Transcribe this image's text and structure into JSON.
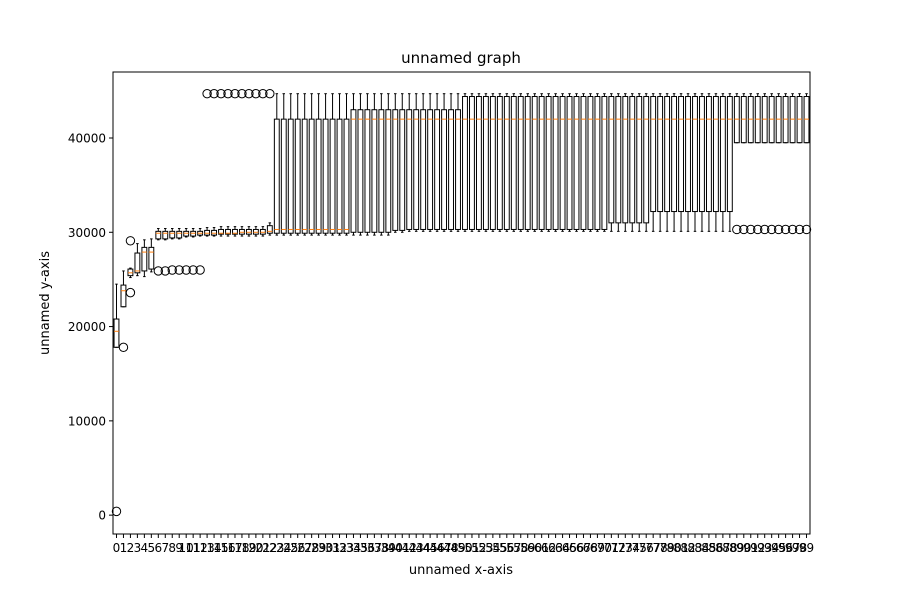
{
  "chart_data": {
    "type": "box",
    "title": "unnamed graph",
    "xlabel": "unnamed x-axis",
    "ylabel": "unnamed y-axis",
    "ylim": [
      -2000,
      47000
    ],
    "yticks": [
      0,
      10000,
      20000,
      30000,
      40000
    ],
    "grid": false,
    "colors": {
      "box": "#000000",
      "median": "#ff7f0e",
      "background": "#ffffff"
    },
    "boxes": [
      {
        "x": 0,
        "q1": 17800,
        "med": 19500,
        "q3": 20800,
        "wlo": 17800,
        "whi": 24500,
        "fliers": [
          400
        ]
      },
      {
        "x": 1,
        "q1": 22100,
        "med": 23800,
        "q3": 24400,
        "wlo": 22100,
        "whi": 25900,
        "fliers": [
          17800
        ]
      },
      {
        "x": 2,
        "q1": 25400,
        "med": 25700,
        "q3": 26100,
        "wlo": 25200,
        "whi": 26200,
        "fliers": [
          23600,
          29100
        ]
      },
      {
        "x": 3,
        "q1": 25700,
        "med": 25900,
        "q3": 27800,
        "wlo": 25400,
        "whi": 28800,
        "fliers": []
      },
      {
        "x": 4,
        "q1": 25900,
        "med": 27900,
        "q3": 28400,
        "wlo": 25300,
        "whi": 29200,
        "fliers": []
      },
      {
        "x": 5,
        "q1": 26100,
        "med": 27900,
        "q3": 28400,
        "wlo": 25800,
        "whi": 29300,
        "fliers": []
      },
      {
        "x": 6,
        "q1": 29300,
        "med": 29900,
        "q3": 30100,
        "wlo": 29200,
        "whi": 30400,
        "fliers": [
          25900
        ]
      },
      {
        "x": 7,
        "q1": 29300,
        "med": 29900,
        "q3": 30100,
        "wlo": 29200,
        "whi": 30400,
        "fliers": [
          25900
        ]
      },
      {
        "x": 8,
        "q1": 29400,
        "med": 29900,
        "q3": 30100,
        "wlo": 29300,
        "whi": 30400,
        "fliers": [
          26000
        ]
      },
      {
        "x": 9,
        "q1": 29400,
        "med": 29900,
        "q3": 30100,
        "wlo": 29300,
        "whi": 30400,
        "fliers": [
          26000
        ]
      },
      {
        "x": 10,
        "q1": 29600,
        "med": 29900,
        "q3": 30100,
        "wlo": 29500,
        "whi": 30400,
        "fliers": [
          26000
        ]
      },
      {
        "x": 11,
        "q1": 29600,
        "med": 29900,
        "q3": 30100,
        "wlo": 29500,
        "whi": 30400,
        "fliers": [
          26000
        ]
      },
      {
        "x": 12,
        "q1": 29700,
        "med": 29900,
        "q3": 30100,
        "wlo": 29600,
        "whi": 30400,
        "fliers": [
          26000
        ]
      },
      {
        "x": 13,
        "q1": 29700,
        "med": 29900,
        "q3": 30200,
        "wlo": 29600,
        "whi": 30500,
        "fliers": [
          44700
        ]
      },
      {
        "x": 14,
        "q1": 29700,
        "med": 29900,
        "q3": 30200,
        "wlo": 29600,
        "whi": 30500,
        "fliers": [
          44700
        ]
      },
      {
        "x": 15,
        "q1": 29800,
        "med": 29900,
        "q3": 30300,
        "wlo": 29600,
        "whi": 30600,
        "fliers": [
          44700
        ]
      },
      {
        "x": 16,
        "q1": 29800,
        "med": 29900,
        "q3": 30300,
        "wlo": 29600,
        "whi": 30600,
        "fliers": [
          44700
        ]
      },
      {
        "x": 17,
        "q1": 29800,
        "med": 29900,
        "q3": 30300,
        "wlo": 29600,
        "whi": 30600,
        "fliers": [
          44700
        ]
      },
      {
        "x": 18,
        "q1": 29800,
        "med": 30000,
        "q3": 30300,
        "wlo": 29600,
        "whi": 30600,
        "fliers": [
          44700
        ]
      },
      {
        "x": 19,
        "q1": 29800,
        "med": 30000,
        "q3": 30300,
        "wlo": 29600,
        "whi": 30600,
        "fliers": [
          44700
        ]
      },
      {
        "x": 20,
        "q1": 29800,
        "med": 30000,
        "q3": 30300,
        "wlo": 29600,
        "whi": 30600,
        "fliers": [
          44700
        ]
      },
      {
        "x": 21,
        "q1": 29800,
        "med": 30000,
        "q3": 30300,
        "wlo": 29600,
        "whi": 30600,
        "fliers": [
          44700
        ]
      },
      {
        "x": 22,
        "q1": 29900,
        "med": 30100,
        "q3": 30700,
        "wlo": 29700,
        "whi": 31000,
        "fliers": [
          44700
        ]
      },
      {
        "x": 23,
        "q1": 29900,
        "med": 30300,
        "q3": 42000,
        "wlo": 29700,
        "whi": 44700,
        "fliers": []
      },
      {
        "x": 24,
        "q1": 29900,
        "med": 30300,
        "q3": 42000,
        "wlo": 29700,
        "whi": 44700,
        "fliers": []
      },
      {
        "x": 25,
        "q1": 29900,
        "med": 30300,
        "q3": 42000,
        "wlo": 29700,
        "whi": 44700,
        "fliers": []
      },
      {
        "x": 26,
        "q1": 29900,
        "med": 30300,
        "q3": 42000,
        "wlo": 29700,
        "whi": 44700,
        "fliers": []
      },
      {
        "x": 27,
        "q1": 29900,
        "med": 30300,
        "q3": 42000,
        "wlo": 29700,
        "whi": 44700,
        "fliers": []
      },
      {
        "x": 28,
        "q1": 29900,
        "med": 30300,
        "q3": 42000,
        "wlo": 29700,
        "whi": 44700,
        "fliers": []
      },
      {
        "x": 29,
        "q1": 29900,
        "med": 30300,
        "q3": 42000,
        "wlo": 29700,
        "whi": 44700,
        "fliers": []
      },
      {
        "x": 30,
        "q1": 29900,
        "med": 30300,
        "q3": 42000,
        "wlo": 29700,
        "whi": 44700,
        "fliers": []
      },
      {
        "x": 31,
        "q1": 29900,
        "med": 30300,
        "q3": 42000,
        "wlo": 29700,
        "whi": 44700,
        "fliers": []
      },
      {
        "x": 32,
        "q1": 29900,
        "med": 30300,
        "q3": 42000,
        "wlo": 29700,
        "whi": 44700,
        "fliers": []
      },
      {
        "x": 33,
        "q1": 29900,
        "med": 30300,
        "q3": 42000,
        "wlo": 29700,
        "whi": 44700,
        "fliers": []
      },
      {
        "x": 34,
        "q1": 30000,
        "med": 42000,
        "q3": 43000,
        "wlo": 29700,
        "whi": 44700,
        "fliers": []
      },
      {
        "x": 35,
        "q1": 30000,
        "med": 42000,
        "q3": 43000,
        "wlo": 29700,
        "whi": 44700,
        "fliers": []
      },
      {
        "x": 36,
        "q1": 30000,
        "med": 42000,
        "q3": 43000,
        "wlo": 29700,
        "whi": 44700,
        "fliers": []
      },
      {
        "x": 37,
        "q1": 30000,
        "med": 42000,
        "q3": 43000,
        "wlo": 29700,
        "whi": 44700,
        "fliers": []
      },
      {
        "x": 38,
        "q1": 30000,
        "med": 42000,
        "q3": 43000,
        "wlo": 29700,
        "whi": 44700,
        "fliers": []
      },
      {
        "x": 39,
        "q1": 30000,
        "med": 42000,
        "q3": 43000,
        "wlo": 29700,
        "whi": 44700,
        "fliers": []
      },
      {
        "x": 40,
        "q1": 30200,
        "med": 42000,
        "q3": 43000,
        "wlo": 30000,
        "whi": 44700,
        "fliers": []
      },
      {
        "x": 41,
        "q1": 30200,
        "med": 42000,
        "q3": 43000,
        "wlo": 30000,
        "whi": 44700,
        "fliers": []
      },
      {
        "x": 42,
        "q1": 30300,
        "med": 42000,
        "q3": 43000,
        "wlo": 30100,
        "whi": 44700,
        "fliers": []
      },
      {
        "x": 43,
        "q1": 30300,
        "med": 42000,
        "q3": 43000,
        "wlo": 30100,
        "whi": 44700,
        "fliers": []
      },
      {
        "x": 44,
        "q1": 30300,
        "med": 42000,
        "q3": 43000,
        "wlo": 30100,
        "whi": 44700,
        "fliers": []
      },
      {
        "x": 45,
        "q1": 30300,
        "med": 42000,
        "q3": 43000,
        "wlo": 30100,
        "whi": 44700,
        "fliers": []
      },
      {
        "x": 46,
        "q1": 30300,
        "med": 42000,
        "q3": 43000,
        "wlo": 30100,
        "whi": 44700,
        "fliers": []
      },
      {
        "x": 47,
        "q1": 30300,
        "med": 42000,
        "q3": 43000,
        "wlo": 30100,
        "whi": 44700,
        "fliers": []
      },
      {
        "x": 48,
        "q1": 30300,
        "med": 42000,
        "q3": 43000,
        "wlo": 30100,
        "whi": 44700,
        "fliers": []
      },
      {
        "x": 49,
        "q1": 30300,
        "med": 42000,
        "q3": 43000,
        "wlo": 30100,
        "whi": 44700,
        "fliers": []
      },
      {
        "x": 50,
        "q1": 30300,
        "med": 42000,
        "q3": 44400,
        "wlo": 30100,
        "whi": 44700,
        "fliers": []
      },
      {
        "x": 51,
        "q1": 30300,
        "med": 42000,
        "q3": 44400,
        "wlo": 30100,
        "whi": 44700,
        "fliers": []
      },
      {
        "x": 52,
        "q1": 30300,
        "med": 42000,
        "q3": 44400,
        "wlo": 30100,
        "whi": 44700,
        "fliers": []
      },
      {
        "x": 53,
        "q1": 30300,
        "med": 42000,
        "q3": 44400,
        "wlo": 30100,
        "whi": 44700,
        "fliers": []
      },
      {
        "x": 54,
        "q1": 30300,
        "med": 42000,
        "q3": 44400,
        "wlo": 30100,
        "whi": 44700,
        "fliers": []
      },
      {
        "x": 55,
        "q1": 30300,
        "med": 42000,
        "q3": 44400,
        "wlo": 30100,
        "whi": 44700,
        "fliers": []
      },
      {
        "x": 56,
        "q1": 30300,
        "med": 42000,
        "q3": 44400,
        "wlo": 30100,
        "whi": 44700,
        "fliers": []
      },
      {
        "x": 57,
        "q1": 30300,
        "med": 42000,
        "q3": 44400,
        "wlo": 30100,
        "whi": 44700,
        "fliers": []
      },
      {
        "x": 58,
        "q1": 30300,
        "med": 42000,
        "q3": 44400,
        "wlo": 30100,
        "whi": 44700,
        "fliers": []
      },
      {
        "x": 59,
        "q1": 30300,
        "med": 42000,
        "q3": 44400,
        "wlo": 30100,
        "whi": 44700,
        "fliers": []
      },
      {
        "x": 60,
        "q1": 30300,
        "med": 42000,
        "q3": 44400,
        "wlo": 30100,
        "whi": 44700,
        "fliers": []
      },
      {
        "x": 61,
        "q1": 30300,
        "med": 42000,
        "q3": 44400,
        "wlo": 30100,
        "whi": 44700,
        "fliers": []
      },
      {
        "x": 62,
        "q1": 30300,
        "med": 42000,
        "q3": 44400,
        "wlo": 30100,
        "whi": 44700,
        "fliers": []
      },
      {
        "x": 63,
        "q1": 30300,
        "med": 42000,
        "q3": 44400,
        "wlo": 30100,
        "whi": 44700,
        "fliers": []
      },
      {
        "x": 64,
        "q1": 30300,
        "med": 42000,
        "q3": 44400,
        "wlo": 30100,
        "whi": 44700,
        "fliers": []
      },
      {
        "x": 65,
        "q1": 30300,
        "med": 42000,
        "q3": 44400,
        "wlo": 30100,
        "whi": 44700,
        "fliers": []
      },
      {
        "x": 66,
        "q1": 30300,
        "med": 42000,
        "q3": 44400,
        "wlo": 30100,
        "whi": 44700,
        "fliers": []
      },
      {
        "x": 67,
        "q1": 30300,
        "med": 42000,
        "q3": 44400,
        "wlo": 30100,
        "whi": 44700,
        "fliers": []
      },
      {
        "x": 68,
        "q1": 30300,
        "med": 42000,
        "q3": 44400,
        "wlo": 30100,
        "whi": 44700,
        "fliers": []
      },
      {
        "x": 69,
        "q1": 30300,
        "med": 42000,
        "q3": 44400,
        "wlo": 30100,
        "whi": 44700,
        "fliers": []
      },
      {
        "x": 70,
        "q1": 30300,
        "med": 42000,
        "q3": 44400,
        "wlo": 30100,
        "whi": 44700,
        "fliers": []
      },
      {
        "x": 71,
        "q1": 31000,
        "med": 42000,
        "q3": 44400,
        "wlo": 30100,
        "whi": 44700,
        "fliers": []
      },
      {
        "x": 72,
        "q1": 31000,
        "med": 42000,
        "q3": 44400,
        "wlo": 30100,
        "whi": 44700,
        "fliers": []
      },
      {
        "x": 73,
        "q1": 31000,
        "med": 42000,
        "q3": 44400,
        "wlo": 30100,
        "whi": 44700,
        "fliers": []
      },
      {
        "x": 74,
        "q1": 31000,
        "med": 42000,
        "q3": 44400,
        "wlo": 30100,
        "whi": 44700,
        "fliers": []
      },
      {
        "x": 75,
        "q1": 31000,
        "med": 42000,
        "q3": 44400,
        "wlo": 30100,
        "whi": 44700,
        "fliers": []
      },
      {
        "x": 76,
        "q1": 31000,
        "med": 42000,
        "q3": 44400,
        "wlo": 30100,
        "whi": 44700,
        "fliers": []
      },
      {
        "x": 77,
        "q1": 32200,
        "med": 42000,
        "q3": 44400,
        "wlo": 30100,
        "whi": 44700,
        "fliers": []
      },
      {
        "x": 78,
        "q1": 32200,
        "med": 42000,
        "q3": 44400,
        "wlo": 30100,
        "whi": 44700,
        "fliers": []
      },
      {
        "x": 79,
        "q1": 32200,
        "med": 42000,
        "q3": 44400,
        "wlo": 30100,
        "whi": 44700,
        "fliers": []
      },
      {
        "x": 80,
        "q1": 32200,
        "med": 42000,
        "q3": 44400,
        "wlo": 30100,
        "whi": 44700,
        "fliers": []
      },
      {
        "x": 81,
        "q1": 32200,
        "med": 42000,
        "q3": 44400,
        "wlo": 30100,
        "whi": 44700,
        "fliers": []
      },
      {
        "x": 82,
        "q1": 32200,
        "med": 42000,
        "q3": 44400,
        "wlo": 30100,
        "whi": 44700,
        "fliers": []
      },
      {
        "x": 83,
        "q1": 32200,
        "med": 42000,
        "q3": 44400,
        "wlo": 30100,
        "whi": 44700,
        "fliers": []
      },
      {
        "x": 84,
        "q1": 32200,
        "med": 42000,
        "q3": 44400,
        "wlo": 30100,
        "whi": 44700,
        "fliers": []
      },
      {
        "x": 85,
        "q1": 32200,
        "med": 42000,
        "q3": 44400,
        "wlo": 30100,
        "whi": 44700,
        "fliers": []
      },
      {
        "x": 86,
        "q1": 32200,
        "med": 42000,
        "q3": 44400,
        "wlo": 30100,
        "whi": 44700,
        "fliers": []
      },
      {
        "x": 87,
        "q1": 32200,
        "med": 42000,
        "q3": 44400,
        "wlo": 30100,
        "whi": 44700,
        "fliers": []
      },
      {
        "x": 88,
        "q1": 32200,
        "med": 42000,
        "q3": 44400,
        "wlo": 30100,
        "whi": 44700,
        "fliers": []
      },
      {
        "x": 89,
        "q1": 39500,
        "med": 42000,
        "q3": 44400,
        "wlo": 39500,
        "whi": 44700,
        "fliers": [
          30300
        ]
      },
      {
        "x": 90,
        "q1": 39500,
        "med": 42000,
        "q3": 44400,
        "wlo": 39500,
        "whi": 44700,
        "fliers": [
          30300
        ]
      },
      {
        "x": 91,
        "q1": 39500,
        "med": 42000,
        "q3": 44400,
        "wlo": 39500,
        "whi": 44700,
        "fliers": [
          30300
        ]
      },
      {
        "x": 92,
        "q1": 39500,
        "med": 42000,
        "q3": 44400,
        "wlo": 39500,
        "whi": 44700,
        "fliers": [
          30300
        ]
      },
      {
        "x": 93,
        "q1": 39500,
        "med": 42000,
        "q3": 44400,
        "wlo": 39500,
        "whi": 44700,
        "fliers": [
          30300
        ]
      },
      {
        "x": 94,
        "q1": 39500,
        "med": 42000,
        "q3": 44400,
        "wlo": 39500,
        "whi": 44700,
        "fliers": [
          30300
        ]
      },
      {
        "x": 95,
        "q1": 39500,
        "med": 42000,
        "q3": 44400,
        "wlo": 39500,
        "whi": 44700,
        "fliers": [
          30300
        ]
      },
      {
        "x": 96,
        "q1": 39500,
        "med": 42000,
        "q3": 44400,
        "wlo": 39500,
        "whi": 44700,
        "fliers": [
          30300
        ]
      },
      {
        "x": 97,
        "q1": 39500,
        "med": 42000,
        "q3": 44400,
        "wlo": 39500,
        "whi": 44700,
        "fliers": [
          30300
        ]
      },
      {
        "x": 98,
        "q1": 39500,
        "med": 42000,
        "q3": 44400,
        "wlo": 39500,
        "whi": 44700,
        "fliers": [
          30300
        ]
      },
      {
        "x": 99,
        "q1": 39500,
        "med": 42000,
        "q3": 44400,
        "wlo": 39500,
        "whi": 44700,
        "fliers": [
          30300
        ]
      }
    ]
  }
}
